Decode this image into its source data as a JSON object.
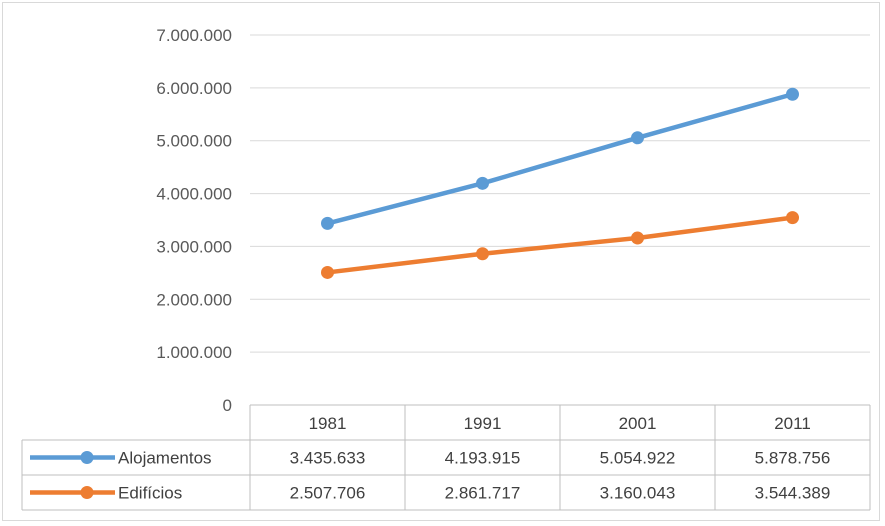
{
  "chart_data": {
    "type": "line",
    "categories": [
      "1981",
      "1991",
      "2001",
      "2011"
    ],
    "ylim": [
      0,
      7000000
    ],
    "y_ticks": [
      "0",
      "1.000.000",
      "2.000.000",
      "3.000.000",
      "4.000.000",
      "5.000.000",
      "6.000.000",
      "7.000.000"
    ],
    "y_tick_values": [
      0,
      1000000,
      2000000,
      3000000,
      4000000,
      5000000,
      6000000,
      7000000
    ],
    "grid": true,
    "legend": "data-table",
    "series": [
      {
        "name": "Alojamentos",
        "values": [
          3435633,
          4193915,
          5054922,
          5878756
        ],
        "labels": [
          "3.435.633",
          "4.193.915",
          "5.054.922",
          "5.878.756"
        ],
        "color": "#5b9bd5"
      },
      {
        "name": "Edifícios",
        "values": [
          2507706,
          2861717,
          3160043,
          3544389
        ],
        "labels": [
          "2.507.706",
          "2.861.717",
          "3.160.043",
          "3.544.389"
        ],
        "color": "#ed7d31"
      }
    ]
  }
}
